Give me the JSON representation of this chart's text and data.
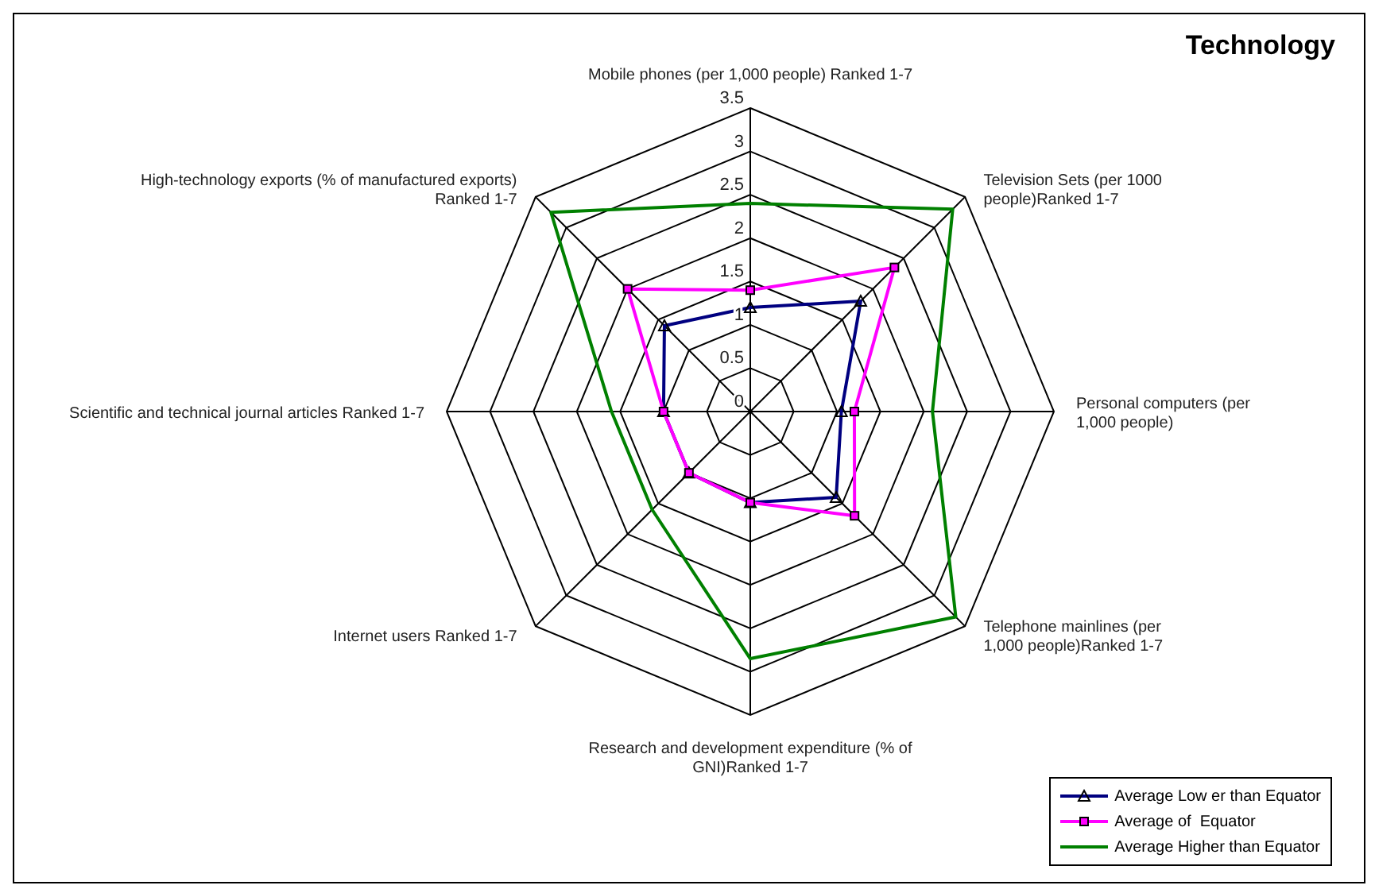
{
  "chart_data": {
    "type": "radar",
    "title": "Technology",
    "categories": [
      "Mobile phones (per 1,000 people) Ranked 1-7",
      "Television Sets (per 1000 people)Ranked 1-7",
      "Personal computers (per 1,000 people)",
      "Telephone mainlines (per 1,000 people)Ranked 1-7",
      "Research and development expenditure (% of GNI)Ranked 1-7",
      "Internet users Ranked 1-7",
      "Scientific and technical journal articles Ranked 1-7",
      "High-technology exports (% of manufactured exports) Ranked 1-7"
    ],
    "series": [
      {
        "name": "Average Low er than Equator",
        "color": "#000080",
        "marker": "triangle",
        "values": [
          1.2,
          1.8,
          1.05,
          1.4,
          1.05,
          1.0,
          1.0,
          1.4
        ]
      },
      {
        "name": "Average of  Equator",
        "color": "#ff00ff",
        "marker": "square",
        "values": [
          1.4,
          2.35,
          1.2,
          1.7,
          1.05,
          1.0,
          1.0,
          2.0
        ]
      },
      {
        "name": "Average Higher than Equator",
        "color": "#008000",
        "marker": "none",
        "values": [
          2.4,
          3.3,
          2.1,
          3.35,
          2.85,
          1.6,
          1.6,
          3.25
        ]
      }
    ],
    "ylim": [
      0,
      3.5
    ],
    "yticks": [
      0,
      0.5,
      1,
      1.5,
      2,
      2.5,
      3,
      3.5
    ],
    "grid": true,
    "legend": "bottom right"
  }
}
